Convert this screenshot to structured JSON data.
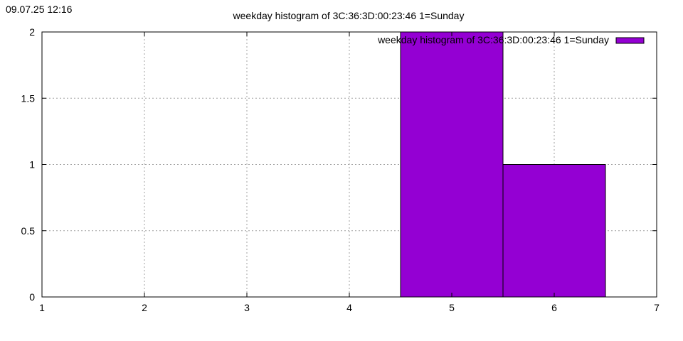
{
  "timestamp": "09.07.25 12:16",
  "chart_data": {
    "type": "bar",
    "title": "weekday histogram of 3C:36:3D:00:23:46 1=Sunday",
    "xlabel": "",
    "ylabel": "",
    "x": [
      5,
      6
    ],
    "values": [
      2,
      1
    ],
    "bar_width": 1,
    "xlim": [
      1,
      7
    ],
    "ylim": [
      0,
      2
    ],
    "x_ticks": [
      1,
      2,
      3,
      4,
      5,
      6,
      7
    ],
    "y_ticks": [
      0,
      0.5,
      1,
      1.5,
      2
    ],
    "y_tick_labels": [
      "0",
      "0.5",
      "1",
      "1.5",
      "2"
    ],
    "grid": true,
    "legend": {
      "placement": "top-right",
      "entries": [
        {
          "label": "weekday histogram of 3C:36:3D:00:23:46 1=Sunday",
          "color": "#9400d3"
        }
      ]
    },
    "series": [
      {
        "name": "weekday histogram of 3C:36:3D:00:23:46 1=Sunday",
        "color": "#9400d3"
      }
    ]
  }
}
